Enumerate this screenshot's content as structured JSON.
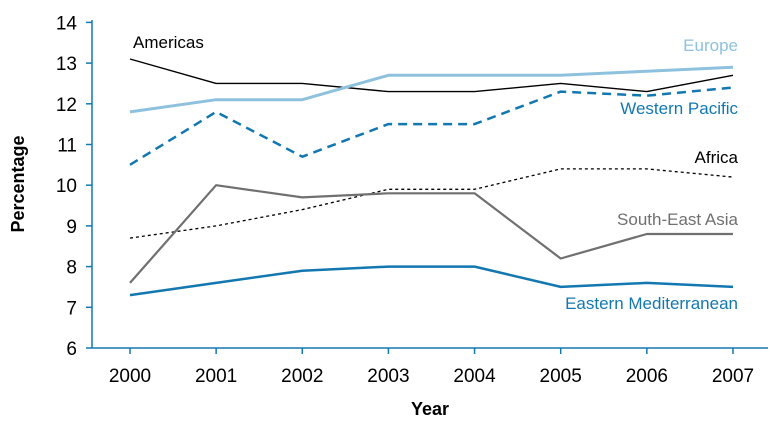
{
  "chart_data": {
    "type": "line",
    "title": "",
    "xlabel": "Year",
    "ylabel": "Percentage",
    "x": [
      "2000",
      "2001",
      "2002",
      "2003",
      "2004",
      "2005",
      "2006",
      "2007"
    ],
    "yticks": [
      "6",
      "7",
      "8",
      "9",
      "10",
      "11",
      "12",
      "13",
      "14"
    ],
    "ylim": [
      6,
      14
    ],
    "grid": false,
    "series": [
      {
        "name": "Americas",
        "values": [
          13.1,
          12.5,
          12.5,
          12.3,
          12.3,
          12.5,
          12.3,
          12.7
        ],
        "color": "#000000",
        "dash": "solid",
        "width": 1.4
      },
      {
        "name": "Europe",
        "values": [
          11.8,
          12.1,
          12.1,
          12.7,
          12.7,
          12.7,
          12.8,
          12.9
        ],
        "color": "#8ec1dd",
        "dash": "solid",
        "width": 3
      },
      {
        "name": "Western Pacific",
        "values": [
          10.5,
          11.8,
          10.7,
          11.5,
          11.5,
          12.3,
          12.2,
          12.4
        ],
        "color": "#1378b0",
        "dash": "dashed",
        "width": 2.5
      },
      {
        "name": "Africa",
        "values": [
          8.7,
          9.0,
          9.4,
          9.9,
          9.9,
          10.4,
          10.4,
          10.2
        ],
        "color": "#000000",
        "dash": "dotted",
        "width": 1.3
      },
      {
        "name": "South-East Asia",
        "values": [
          7.6,
          10.0,
          9.7,
          9.8,
          9.8,
          8.2,
          8.8,
          8.8
        ],
        "color": "#707070",
        "dash": "solid",
        "width": 2.2
      },
      {
        "name": "Eastern Mediterranean",
        "values": [
          7.3,
          7.6,
          7.9,
          8.0,
          8.0,
          7.5,
          7.6,
          7.5
        ],
        "color": "#1378b0",
        "dash": "solid",
        "width": 2.5
      }
    ]
  }
}
